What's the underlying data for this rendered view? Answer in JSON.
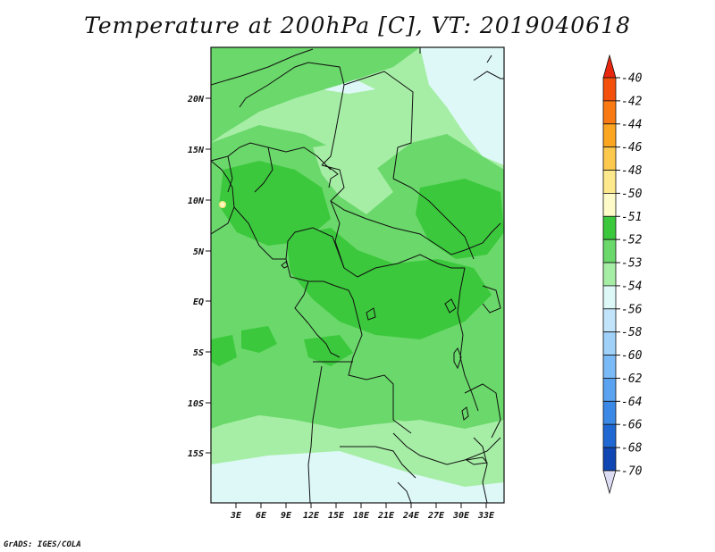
{
  "title": "Temperature at 200hPa [C], VT: 2019040618",
  "credit": "GrADS: IGES/COLA",
  "lat_labels": [
    "20N",
    "15N",
    "10N",
    "5N",
    "EQ",
    "5S",
    "10S",
    "15S"
  ],
  "lon_labels": [
    "3E",
    "6E",
    "9E",
    "12E",
    "15E",
    "18E",
    "21E",
    "24E",
    "27E",
    "30E",
    "33E"
  ],
  "colorbar": {
    "levels": [
      "-40",
      "-42",
      "-44",
      "-46",
      "-48",
      "-50",
      "-51",
      "-52",
      "-53",
      "-54",
      "-56",
      "-58",
      "-60",
      "-62",
      "-64",
      "-66",
      "-68",
      "-70"
    ],
    "colors": [
      "#e8270f",
      "#f4500c",
      "#f97a12",
      "#fca521",
      "#fdc84e",
      "#fde88c",
      "#fefbc9",
      "#3bc83c",
      "#6ad86a",
      "#a6eea6",
      "#def8f8",
      "#c2e4fb",
      "#9fd1f9",
      "#7abaf6",
      "#5aa3f0",
      "#3b89e6",
      "#1f68d4",
      "#0f46b4",
      "#0b2b86",
      "#0c1770",
      "#dcdcf2"
    ]
  }
}
